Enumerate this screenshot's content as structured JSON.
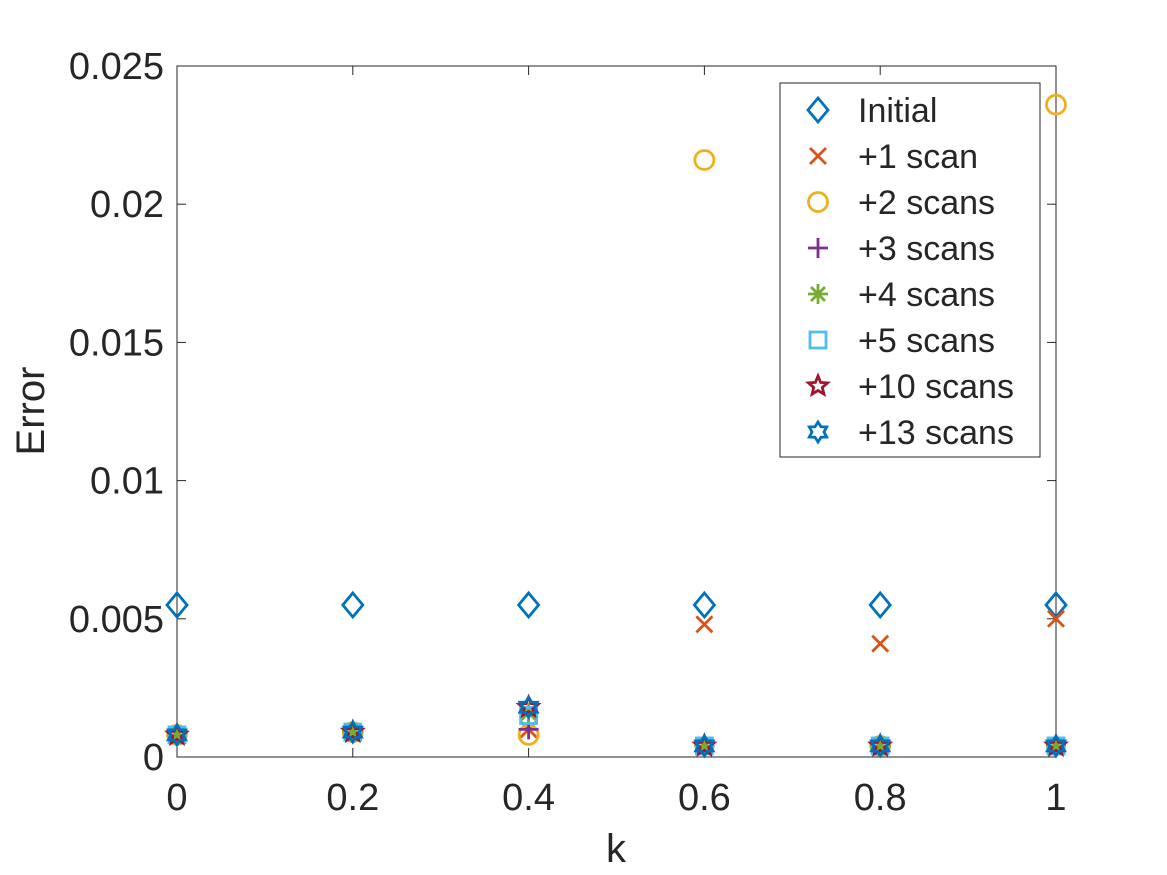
{
  "chart_data": {
    "type": "scatter",
    "xlabel": "k",
    "ylabel": "Error",
    "xlim": [
      0,
      1
    ],
    "ylim": [
      0,
      0.025
    ],
    "xticks": [
      0,
      0.2,
      0.4,
      0.6,
      0.8,
      1
    ],
    "xtick_labels": [
      "0",
      "0.2",
      "0.4",
      "0.6",
      "0.8",
      "1"
    ],
    "yticks": [
      0,
      0.005,
      0.01,
      0.015,
      0.02,
      0.025
    ],
    "ytick_labels": [
      "0",
      "0.005",
      "0.01",
      "0.015",
      "0.02",
      "0.025"
    ],
    "grid": false,
    "legend_position": "top-right",
    "x": [
      0,
      0.2,
      0.4,
      0.6,
      0.8,
      1
    ],
    "series": [
      {
        "name": "Initial",
        "marker": "diamond",
        "color": "#0072BD",
        "values": [
          0.0055,
          0.0055,
          0.0055,
          0.0055,
          0.0055,
          0.0055
        ]
      },
      {
        "name": "+1 scan",
        "marker": "x",
        "color": "#D95319",
        "values": [
          0.0008,
          0.0009,
          0.001,
          0.0048,
          0.0041,
          0.005
        ]
      },
      {
        "name": "+2 scans",
        "marker": "circle",
        "color": "#EDB120",
        "values": [
          0.0008,
          0.0009,
          0.0008,
          0.0216,
          0.0004,
          0.0236
        ]
      },
      {
        "name": "+3 scans",
        "marker": "plus",
        "color": "#7E2F8E",
        "values": [
          0.0008,
          0.0009,
          0.001,
          0.0004,
          0.0004,
          0.0004
        ]
      },
      {
        "name": "+4 scans",
        "marker": "asterisk",
        "color": "#77AC30",
        "values": [
          0.0008,
          0.0009,
          0.0016,
          0.0004,
          0.0004,
          0.0004
        ]
      },
      {
        "name": "+5 scans",
        "marker": "square",
        "color": "#4DBEEE",
        "values": [
          0.0008,
          0.0009,
          0.0015,
          0.0004,
          0.0004,
          0.0004
        ]
      },
      {
        "name": "+10 scans",
        "marker": "pentagram",
        "color": "#A2142F",
        "values": [
          0.0008,
          0.0009,
          0.0018,
          0.0004,
          0.0004,
          0.0004
        ]
      },
      {
        "name": "+13 scans",
        "marker": "hexagram",
        "color": "#0072BD",
        "values": [
          0.0008,
          0.0009,
          0.0018,
          0.0004,
          0.0004,
          0.0004
        ]
      }
    ]
  }
}
